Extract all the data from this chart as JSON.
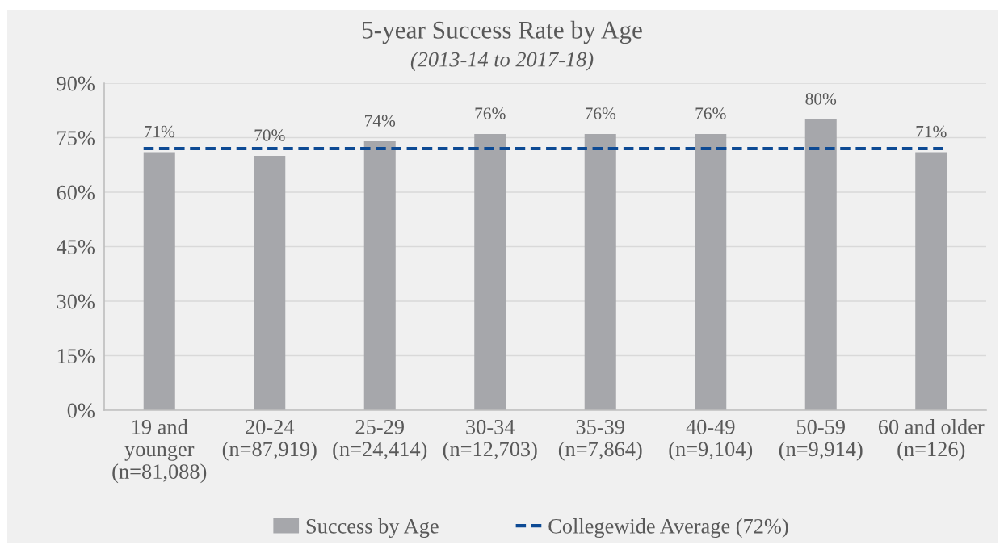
{
  "chart_data": {
    "type": "bar",
    "title": "5-year Success Rate by Age",
    "subtitle": "(2013-14 to 2017-18)",
    "categories": [
      "19 and\nyounger\n(n=81,088)",
      "20-24\n(n=87,919)",
      "25-29\n(n=24,414)",
      "30-34\n(n=12,703)",
      "35-39\n(n=7,864)",
      "40-49\n(n=9,104)",
      "50-59\n(n=9,914)",
      "60 and older\n(n=126)"
    ],
    "series": [
      {
        "name": "Success by Age",
        "color": "#a6a7ab",
        "values": [
          71,
          70,
          74,
          76,
          76,
          76,
          80,
          71
        ],
        "value_labels": [
          "71%",
          "70%",
          "74%",
          "76%",
          "76%",
          "76%",
          "80%",
          "71%"
        ]
      }
    ],
    "ylim": [
      0,
      90
    ],
    "yticks": [
      {
        "value": 0,
        "label": "0%"
      },
      {
        "value": 15,
        "label": "15%"
      },
      {
        "value": 30,
        "label": "30%"
      },
      {
        "value": 45,
        "label": "45%"
      },
      {
        "value": 60,
        "label": "60%"
      },
      {
        "value": 75,
        "label": "75%"
      },
      {
        "value": 90,
        "label": "90%"
      }
    ],
    "grid": "y",
    "legend": "bottom",
    "ref_lines": [
      {
        "axis": "y",
        "value": 72,
        "label": "Collegewide Average (72%)",
        "color": "#0d4a94",
        "line_style": "dashed"
      }
    ]
  }
}
